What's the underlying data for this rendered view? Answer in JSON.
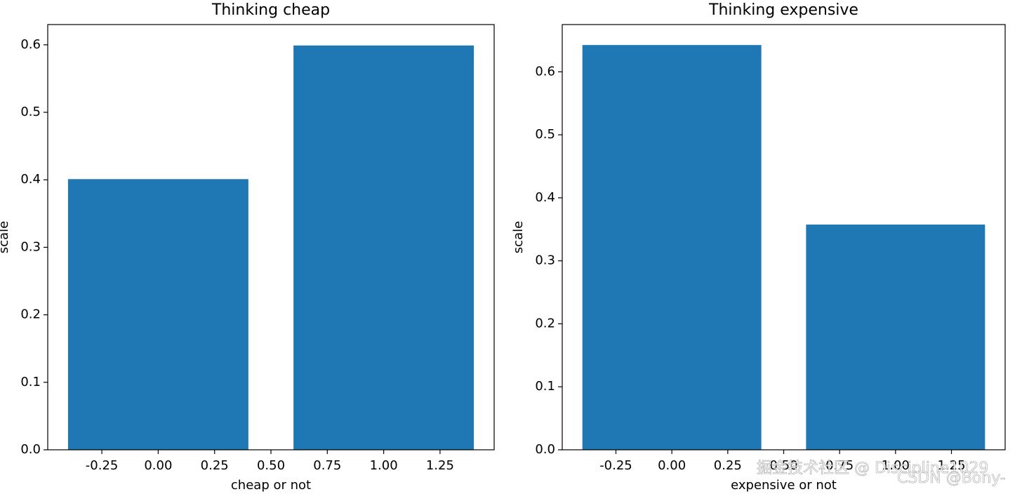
{
  "chart_data": [
    {
      "type": "bar",
      "title": "Thinking cheap",
      "xlabel": "cheap or not",
      "ylabel": "scale",
      "x": [
        0,
        1
      ],
      "values": [
        0.401,
        0.599
      ],
      "color": "#1f77b4",
      "xlim": [
        -0.49,
        1.49
      ],
      "ylim": [
        0,
        0.63
      ],
      "xticks": [
        -0.25,
        {
          "value": 0,
          "label": "0.00"
        },
        0.25,
        {
          "value": 0.5,
          "label": "0.50"
        },
        0.75,
        {
          "value": 1,
          "label": "1.00"
        },
        1.25
      ],
      "yticks": [
        {
          "value": 0,
          "label": "0.0"
        },
        0.1,
        0.2,
        0.3,
        0.4,
        0.5,
        0.6
      ]
    },
    {
      "type": "bar",
      "title": "Thinking expensive",
      "xlabel": "expensive or not",
      "ylabel": "scale",
      "x": [
        0,
        1
      ],
      "values": [
        0.6425,
        0.3575
      ],
      "color": "#1f77b4",
      "xlim": [
        -0.49,
        1.49
      ],
      "ylim": [
        0,
        0.675
      ],
      "xticks": [
        -0.25,
        {
          "value": 0,
          "label": "0.00"
        },
        0.25,
        {
          "value": 0.5,
          "label": "0.50"
        },
        0.75,
        {
          "value": 1,
          "label": "1.00"
        },
        1.25
      ],
      "yticks": [
        {
          "value": 0,
          "label": "0.0"
        },
        0.1,
        0.2,
        0.3,
        0.4,
        0.5,
        0.6
      ]
    }
  ],
  "watermark": [
    "掘金技术社区 @ Discipline1029",
    "CSDN @Bony-"
  ]
}
